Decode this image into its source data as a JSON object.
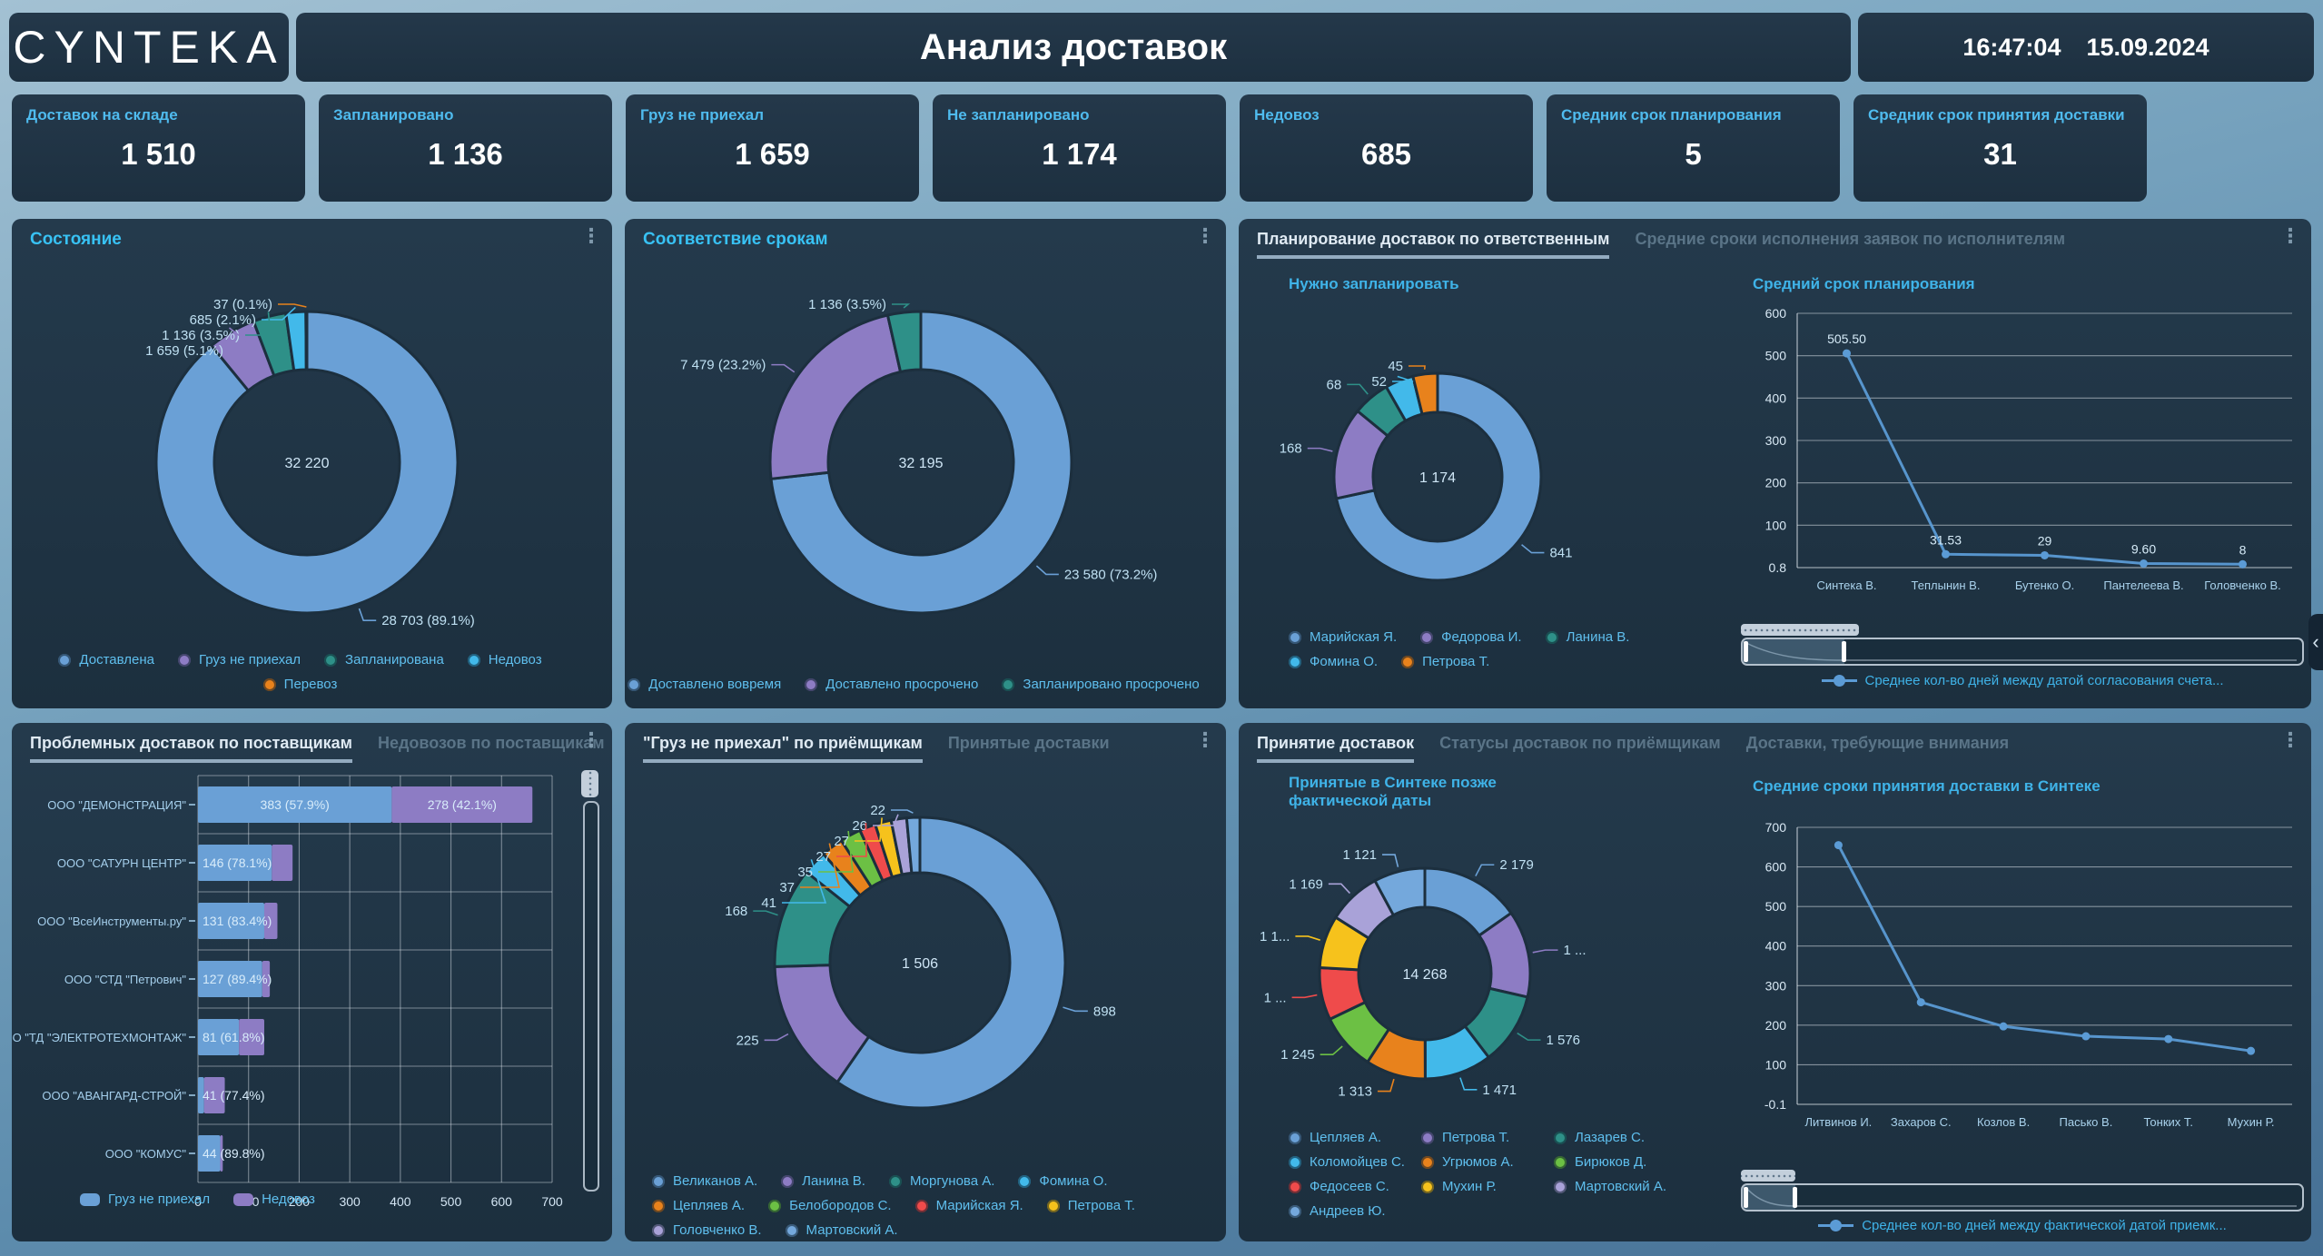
{
  "header": {
    "logo": "CYNTEKA",
    "title": "Анализ доставок",
    "time": "16:47:04",
    "date": "15.09.2024"
  },
  "icons": {
    "kebab": "⋮",
    "collapse": "‹"
  },
  "theme": {
    "background_top": "#a3c1d3",
    "background_bottom": "#456f94",
    "panel": "#1d3040",
    "accent_cyan": "#38c2f4",
    "kpi_label": "#4fbbee",
    "legend_text": "#5fbfee",
    "line_color": "#5b9bd5",
    "active_tab": "#dfeaf3",
    "inactive_tab": "#5a7487",
    "slice_blue": "#6aa0d6",
    "slice_purple": "#8d7cc4",
    "slice_teal": "#2e9088",
    "slice_sky": "#42b9ea",
    "slice_orange": "#e8821c",
    "slice_green": "#6cc044",
    "slice_red": "#ef4b4b",
    "slice_yellow": "#f6c21c",
    "slice_lavender": "#a9a2d8",
    "slice_lightsteel": "#74a8dc"
  },
  "kpis": [
    {
      "label": "Доставок на складе",
      "value": "1 510"
    },
    {
      "label": "Запланировано",
      "value": "1 136"
    },
    {
      "label": "Груз не приехал",
      "value": "1 659"
    },
    {
      "label": "Не запланировано",
      "value": "1 174"
    },
    {
      "label": "Недовоз",
      "value": "685"
    },
    {
      "label": "Средник срок планирования",
      "value": "5"
    },
    {
      "label": "Средник срок принятия доставки",
      "value": "31"
    }
  ],
  "panels": {
    "p1": {
      "title": "Состояние"
    },
    "p2": {
      "title": "Соответствие срокам"
    },
    "p3": {
      "tabs": [
        {
          "label": "Планирование доставок по ответственным",
          "active": true
        },
        {
          "label": "Средние сроки исполнения заявок по исполнителям",
          "active": false
        }
      ],
      "left_title": "Нужно запланировать",
      "right_title": "Средний срок планирования",
      "line_legend": "Среднее кол-во дней между датой согласования счета..."
    },
    "p4": {
      "tabs": [
        {
          "label": "Проблемных доставок по поставщикам",
          "active": true
        },
        {
          "label": "Недовозов по поставщикам",
          "active": false
        }
      ]
    },
    "p5": {
      "tabs": [
        {
          "label": "\"Груз не приехал\" по приёмщикам",
          "active": true
        },
        {
          "label": "Принятые доставки",
          "active": false
        }
      ]
    },
    "p6": {
      "tabs": [
        {
          "label": "Принятие доставок",
          "active": true
        },
        {
          "label": "Статусы доставок по приёмщикам",
          "active": false
        },
        {
          "label": "Доставки, требующие внимания",
          "active": false
        }
      ],
      "left_title": "Принятые в Синтеке позже фактической даты",
      "right_title": "Средние сроки принятия доставки в Синтеке",
      "line_legend": "Среднее кол-во дней между фактической датой приемк..."
    }
  },
  "chart_data": [
    {
      "id": "status",
      "type": "donut",
      "panel": "p1",
      "title": "Состояние",
      "center": "32 220",
      "slices": [
        {
          "name": "Доставлена",
          "value": 28703,
          "callout": "28 703 (89.1%)",
          "color": "#6aa0d6"
        },
        {
          "name": "Груз не приехал",
          "value": 1659,
          "callout": "1 659 (5.1%)",
          "color": "#8d7cc4"
        },
        {
          "name": "Запланирована",
          "value": 1136,
          "callout": "1 136 (3.5%)",
          "color": "#2e9088"
        },
        {
          "name": "Недовоз",
          "value": 685,
          "callout": "685 (2.1%)",
          "color": "#42b9ea"
        },
        {
          "name": "Перевоз",
          "value": 37,
          "callout": "37 (0.1%)",
          "color": "#e8821c"
        }
      ]
    },
    {
      "id": "deadlines",
      "type": "donut",
      "panel": "p2",
      "title": "Соответствие срокам",
      "center": "32 195",
      "slices": [
        {
          "name": "Доставлено вовремя",
          "value": 23580,
          "callout": "23 580 (73.2%)",
          "color": "#6aa0d6"
        },
        {
          "name": "Доставлено просрочено",
          "value": 7479,
          "callout": "7 479 (23.2%)",
          "color": "#8d7cc4"
        },
        {
          "name": "Запланировано просрочено",
          "value": 1136,
          "callout": "1 136 (3.5%)",
          "color": "#2e9088"
        }
      ]
    },
    {
      "id": "needplan",
      "type": "donut",
      "panel": "p3",
      "title": "Нужно запланировать",
      "center": "1 174",
      "slices": [
        {
          "name": "Марийская Я.",
          "value": 841,
          "callout": "841",
          "color": "#6aa0d6"
        },
        {
          "name": "Федорова И.",
          "value": 168,
          "callout": "168",
          "color": "#8d7cc4"
        },
        {
          "name": "Ланина В.",
          "value": 68,
          "callout": "68",
          "color": "#2e9088"
        },
        {
          "name": "Фомина О.",
          "value": 52,
          "callout": "52",
          "color": "#42b9ea"
        },
        {
          "name": "Петрова Т.",
          "value": 45,
          "callout": "45",
          "color": "#e8821c"
        }
      ]
    },
    {
      "id": "planterm",
      "type": "line",
      "panel": "p3",
      "title": "Средний срок планирования",
      "categories": [
        "Синтека В.",
        "Теплынин В.",
        "Бутенко О.",
        "Пантелеева В.",
        "Головченко В."
      ],
      "values": [
        505.5,
        31.53,
        29,
        9.6,
        8
      ],
      "point_labels": [
        "505.50",
        "31.53",
        "29",
        "9.60",
        "8"
      ],
      "ytick_labels": [
        "600",
        "500",
        "400",
        "300",
        "200",
        "100",
        "0.8"
      ],
      "ymax": 600,
      "grid": true,
      "color": "#5b9bd5",
      "series_name": "Среднее кол-во дней между датой согласования счета..."
    },
    {
      "id": "suppliers",
      "type": "stacked_bar_h",
      "panel": "p4",
      "title": "Проблемных доставок по поставщикам",
      "categories": [
        "ООО \"ДЕМОНСТРАЦИЯ\"",
        "ООО \"САТУРН ЦЕНТР\"",
        "ООО \"ВсеИнструменты.ру\"",
        "ООО \"СТД \"Петрович\"",
        "ООО \"ТД \"ЭЛЕКТРОТЕХМОНТАЖ\"",
        "ООО \"АВАНГАРД-СТРОЙ\"",
        "ООО \"КОМУС\""
      ],
      "series": [
        {
          "name": "Груз не приехал",
          "color": "#6aa0d6",
          "values": [
            383,
            146,
            131,
            127,
            81,
            12,
            44
          ]
        },
        {
          "name": "Недовоз",
          "color": "#8d7cc4",
          "values": [
            278,
            41,
            26,
            15,
            50,
            41,
            5
          ]
        }
      ],
      "row_labels": [
        [
          "383 (57.9%)",
          "278 (42.1%)"
        ],
        [
          "146 (78.1%)"
        ],
        [
          "131 (83.4%)"
        ],
        [
          "127 (89.4%)"
        ],
        [
          "81 (61.8%)"
        ],
        [
          "41 (77.4%)"
        ],
        [
          "44 (89.8%)"
        ]
      ],
      "xtick_labels": [
        "0",
        "100",
        "200",
        "300",
        "400",
        "500",
        "600",
        "700"
      ],
      "xmax": 700
    },
    {
      "id": "notarrived",
      "type": "donut",
      "panel": "p5",
      "title": "\"Груз не приехал\" по приёмщикам",
      "center": "1 506",
      "slices": [
        {
          "name": "Великанов А.",
          "value": 898,
          "callout": "898",
          "color": "#6aa0d6"
        },
        {
          "name": "Ланина В.",
          "value": 225,
          "callout": "225",
          "color": "#8d7cc4"
        },
        {
          "name": "Моргунова А.",
          "value": 168,
          "callout": "168",
          "color": "#2e9088"
        },
        {
          "name": "Фомина О.",
          "value": 41,
          "callout": "41",
          "color": "#42b9ea"
        },
        {
          "name": "Цепляев А.",
          "value": 37,
          "callout": "37",
          "color": "#e8821c"
        },
        {
          "name": "Белобородов С.",
          "value": 35,
          "callout": "35",
          "color": "#6cc044"
        },
        {
          "name": "Марийская Я.",
          "value": 27,
          "callout": "27",
          "color": "#ef4b4b"
        },
        {
          "name": "Петрова Т.",
          "value": 27,
          "callout": "27",
          "color": "#f6c21c"
        },
        {
          "name": "Головченко В.",
          "value": 26,
          "callout": "26",
          "color": "#a9a2d8"
        },
        {
          "name": "Мартовский А.",
          "value": 22,
          "callout": "22",
          "color": "#74a8dc"
        }
      ]
    },
    {
      "id": "acceptlate",
      "type": "donut",
      "panel": "p6",
      "title": "Принятые в Синтеке позже фактической даты",
      "center": "14 268",
      "slices": [
        {
          "name": "Цепляев А.",
          "value": 2179,
          "callout": "2 179",
          "color": "#6aa0d6"
        },
        {
          "name": "Петрова Т.",
          "value": 1900,
          "callout": "1 ...",
          "color": "#8d7cc4"
        },
        {
          "name": "Лазарев С.",
          "value": 1576,
          "callout": "1 576",
          "color": "#2e9088"
        },
        {
          "name": "Коломойцев С.",
          "value": 1471,
          "callout": "1 471",
          "color": "#42b9ea"
        },
        {
          "name": "Угрюмов А.",
          "value": 1313,
          "callout": "1 313",
          "color": "#e8821c"
        },
        {
          "name": "Бирюков Д.",
          "value": 1245,
          "callout": "1 245",
          "color": "#6cc044"
        },
        {
          "name": "Федосеев С.",
          "value": 1144,
          "callout": "1 ...",
          "color": "#ef4b4b"
        },
        {
          "name": "Мухин Р.",
          "value": 1150,
          "callout": "1 1...",
          "color": "#f6c21c"
        },
        {
          "name": "Мартовский А.",
          "value": 1169,
          "callout": "1 169",
          "color": "#a9a2d8"
        },
        {
          "name": "Андреев Ю.",
          "value": 1121,
          "callout": "1 121",
          "color": "#74a8dc"
        }
      ]
    },
    {
      "id": "acceptterm",
      "type": "line",
      "panel": "p6",
      "title": "Средние сроки принятия доставки в Синтеке",
      "categories": [
        "Литвинов И.",
        "Захаров С.",
        "Козлов В.",
        "Пасько В.",
        "Тонких Т.",
        "Мухин Р."
      ],
      "values": [
        655,
        258,
        197,
        172,
        165,
        135
      ],
      "point_labels": [],
      "ytick_labels": [
        "700",
        "600",
        "500",
        "400",
        "300",
        "200",
        "100",
        "-0.1"
      ],
      "ymax": 700,
      "grid": true,
      "color": "#5b9bd5",
      "series_name": "Среднее кол-во дней между фактической датой приемк..."
    }
  ]
}
